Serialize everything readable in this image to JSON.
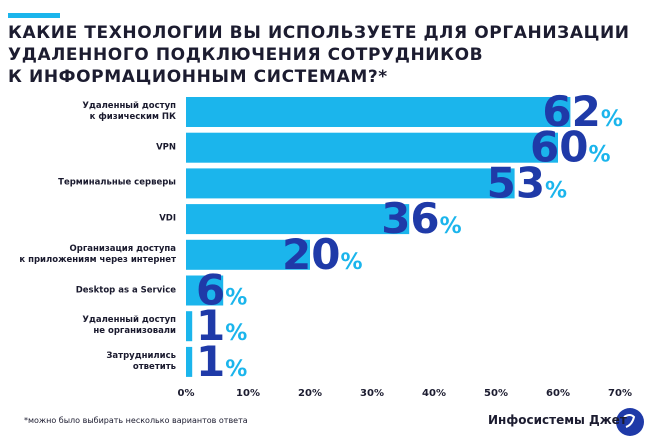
{
  "chart_data": {
    "type": "bar",
    "orientation": "horizontal",
    "title": "КАКИЕ ТЕХНОЛОГИИ ВЫ ИСПОЛЬЗУЕТЕ ДЛЯ ОРГАНИЗАЦИИ\nУДАЛЕННОГО ПОДКЛЮЧЕНИЯ СОТРУДНИКОВ\nК ИНФОРМАЦИОННЫМ СИСТЕМАМ?*",
    "categories": [
      "Удаленный доступ\nк физическим ПК",
      "VPN",
      "Терминальные серверы",
      "VDI",
      "Организация доступа\nк приложениям через интернет",
      "Desktop as a Service",
      "Удаленный доступ\nне организовали",
      "Затруднились\nответить"
    ],
    "values": [
      62,
      60,
      53,
      36,
      20,
      6,
      1,
      1
    ],
    "value_labels": [
      "62%",
      "60%",
      "53%",
      "36%",
      "20%",
      "6%",
      "1%",
      "1%"
    ],
    "color": "#1bb5ec",
    "xlim": [
      0,
      70
    ],
    "xticks": [
      {
        "value": 0,
        "label": "0%"
      },
      {
        "value": 10,
        "label": "10%"
      },
      {
        "value": 20,
        "label": "20%"
      },
      {
        "value": 30,
        "label": "30%"
      },
      {
        "value": 40,
        "label": "40%"
      },
      {
        "value": 50,
        "label": "50%"
      },
      {
        "value": 60,
        "label": "60%"
      },
      {
        "value": 70,
        "label": "70%"
      }
    ],
    "grid": false,
    "footnote": "*можно было выбирать несколько вариантов ответа",
    "brand": "Инфосистемы Джет"
  }
}
